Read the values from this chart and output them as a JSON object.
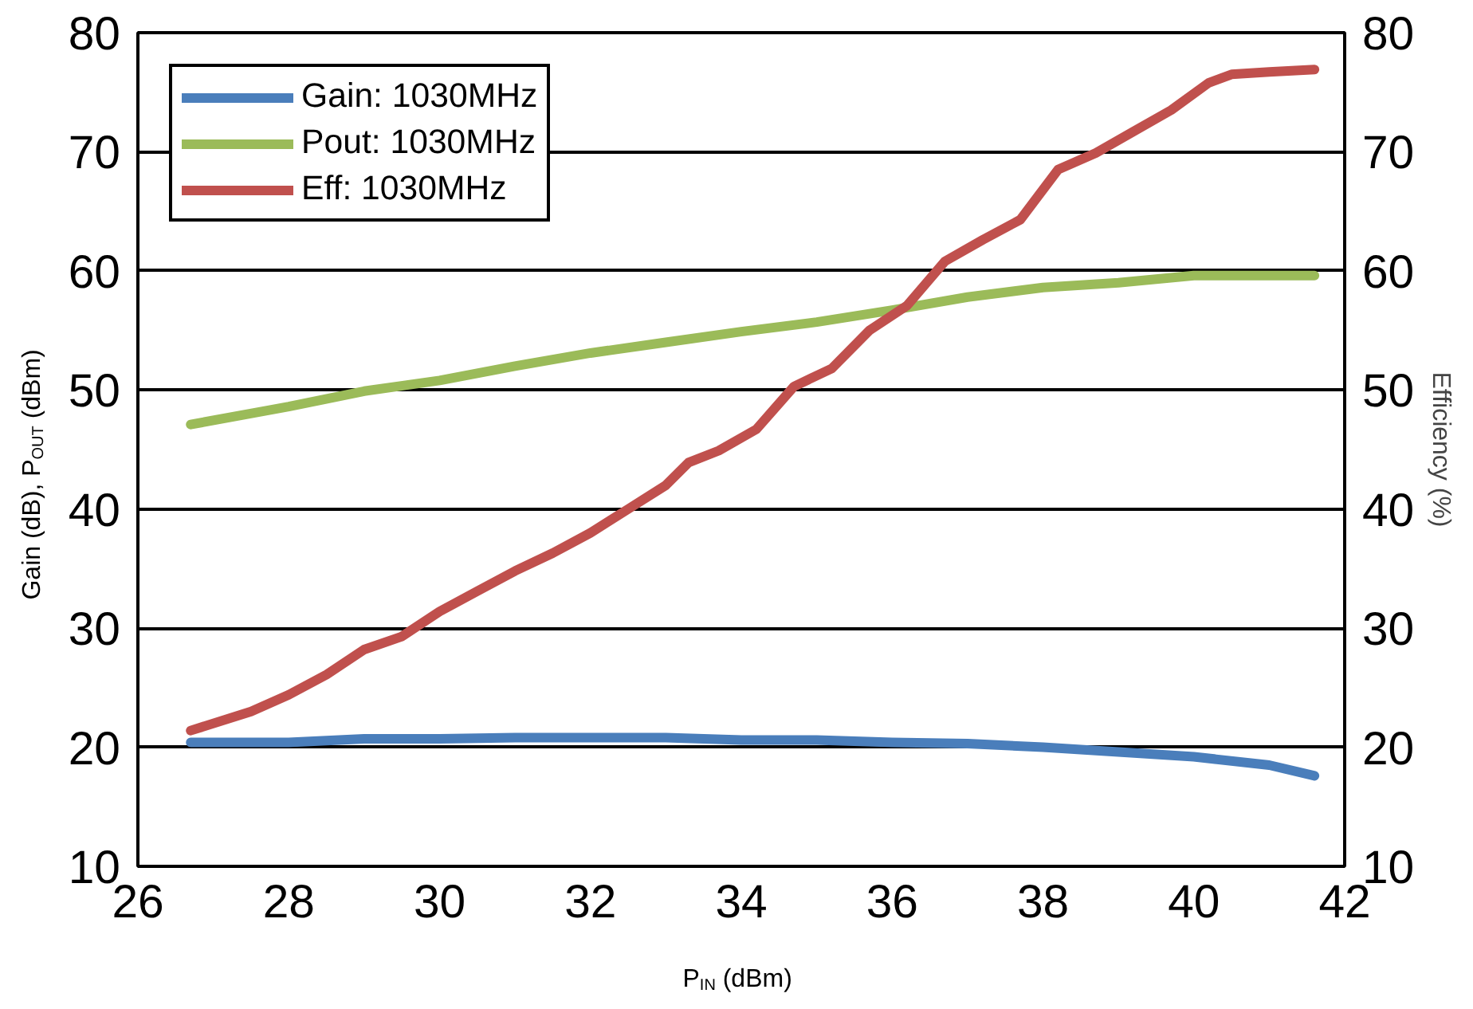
{
  "chart_data": {
    "type": "line",
    "xlabel": "P$_{IN}$ (dBm)",
    "ylabel": "Gain (dB), P$_{OUT}$ (dBm)",
    "y2label": "Efficiency (%)",
    "xlim": [
      26,
      42
    ],
    "xticks": [
      26,
      28,
      30,
      32,
      34,
      36,
      38,
      40,
      42
    ],
    "ylim": [
      10,
      80
    ],
    "yticks": [
      10,
      20,
      30,
      40,
      50,
      60,
      70,
      80
    ],
    "y2lim": [
      10,
      80
    ],
    "y2ticks": [
      10,
      20,
      30,
      40,
      50,
      60,
      70,
      80
    ],
    "grid": "y",
    "legend": "top left",
    "line_style": "solid",
    "series": [
      {
        "name": "Gain: 1030MHz",
        "color": "#4a7ebb",
        "x": [
          26.7,
          28,
          29,
          30,
          31,
          32,
          33,
          34,
          35,
          36,
          37,
          38,
          39,
          40,
          41,
          41.6
        ],
        "values": [
          20.4,
          20.4,
          20.7,
          20.7,
          20.8,
          20.8,
          20.8,
          20.6,
          20.6,
          20.4,
          20.3,
          20.0,
          19.6,
          19.2,
          18.5,
          17.6
        ]
      },
      {
        "name": "Pout: 1030MHz",
        "color": "#9bbb59",
        "x": [
          26.7,
          28,
          29,
          30,
          31,
          32,
          33,
          34,
          35,
          36,
          37,
          38,
          39,
          40,
          41,
          41.6
        ],
        "values": [
          47.1,
          48.6,
          49.9,
          50.8,
          52.0,
          53.1,
          54.0,
          54.9,
          55.7,
          56.7,
          57.8,
          58.6,
          59.0,
          59.6,
          59.6,
          59.6
        ]
      },
      {
        "name": "Eff: 1030MHz",
        "color": "#c0504d",
        "axis": "y2",
        "x": [
          26.7,
          27.5,
          28,
          28.5,
          29,
          29.5,
          30,
          30.5,
          31,
          31.5,
          32,
          32.5,
          33,
          33.3,
          33.7,
          34.2,
          34.7,
          35.2,
          35.7,
          36.2,
          36.7,
          37.2,
          37.7,
          38.2,
          38.7,
          39.2,
          39.7,
          40.2,
          40.5,
          41,
          41.6
        ],
        "values": [
          21.4,
          23.0,
          24.4,
          26.1,
          28.2,
          29.3,
          31.4,
          33.1,
          34.8,
          36.3,
          38.0,
          40.0,
          42.0,
          43.9,
          44.9,
          46.7,
          50.3,
          51.8,
          55.0,
          57.1,
          60.8,
          62.6,
          64.3,
          68.5,
          69.9,
          71.7,
          73.5,
          75.8,
          76.5,
          76.7,
          76.9
        ]
      }
    ]
  }
}
